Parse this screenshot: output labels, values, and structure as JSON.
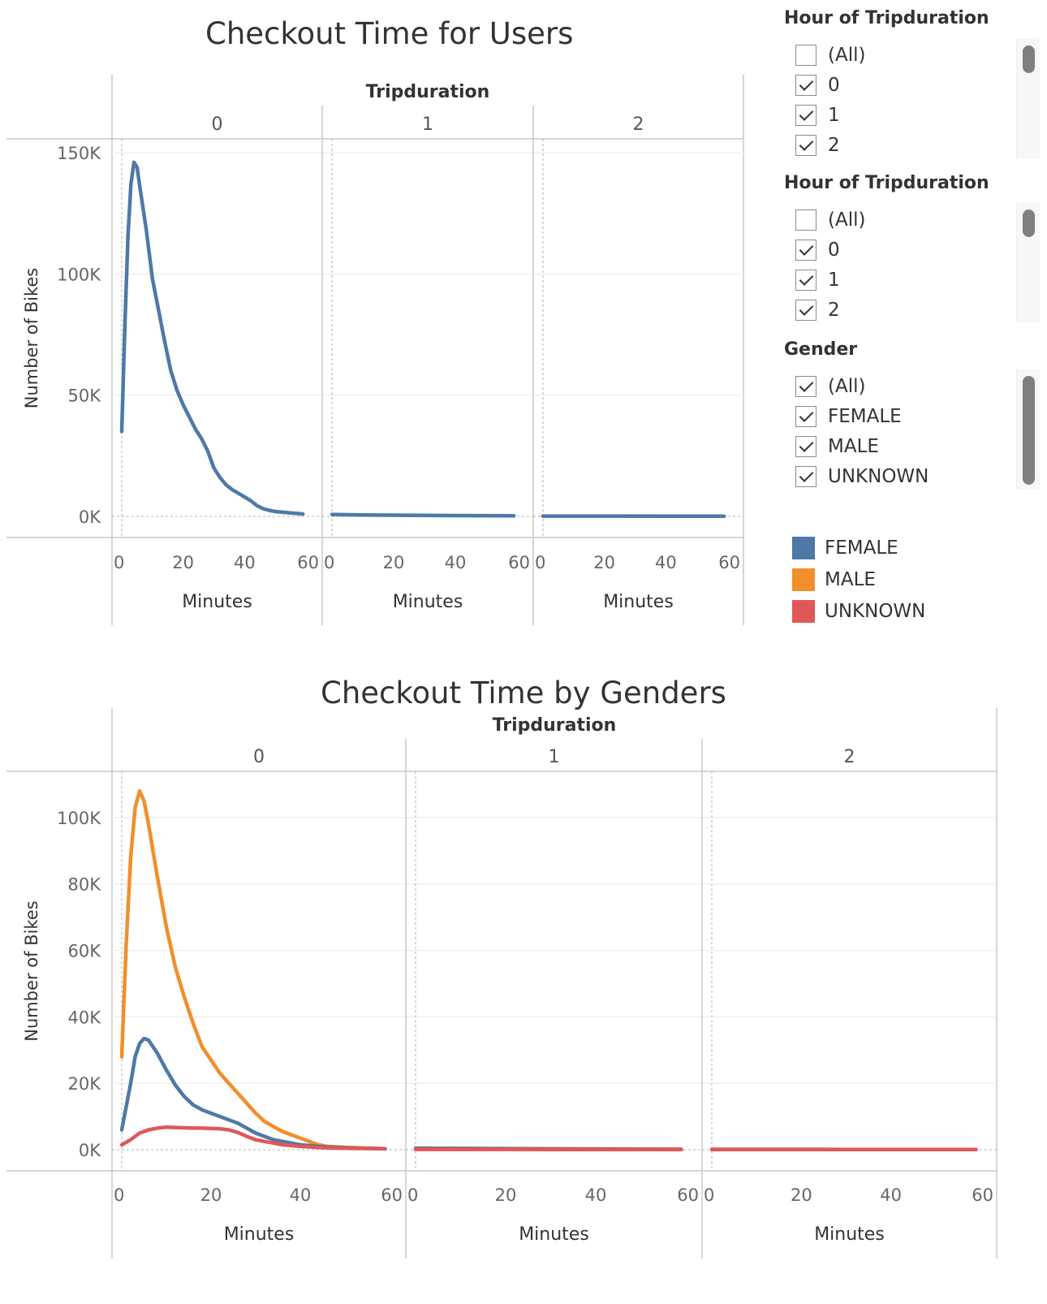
{
  "chart_data": [
    {
      "type": "line",
      "title": "Checkout Time for Users",
      "column_header": "Tripduration",
      "panels": [
        "0",
        "1",
        "2"
      ],
      "xlabel": "Minutes",
      "ylabel": "Number of Bikes",
      "xlim": [
        0,
        60
      ],
      "xticks": [
        0,
        20,
        40,
        60
      ],
      "ylim": [
        0,
        150000
      ],
      "yticks": [
        0,
        50000,
        100000,
        150000
      ],
      "ytick_labels": [
        "0K",
        "50K",
        "100K",
        "150K"
      ],
      "series": [
        {
          "color": "#4e79a7",
          "panel_values": [
            [
              [
                0,
                35000
              ],
              [
                1,
                78000
              ],
              [
                2,
                115000
              ],
              [
                3,
                137000
              ],
              [
                4,
                146000
              ],
              [
                5,
                144000
              ],
              [
                6,
                135000
              ],
              [
                8,
                118000
              ],
              [
                10,
                98000
              ],
              [
                12,
                85000
              ],
              [
                14,
                72000
              ],
              [
                16,
                60000
              ],
              [
                18,
                52000
              ],
              [
                20,
                46000
              ],
              [
                22,
                41000
              ],
              [
                24,
                36000
              ],
              [
                26,
                32000
              ],
              [
                28,
                27000
              ],
              [
                30,
                20000
              ],
              [
                32,
                16000
              ],
              [
                34,
                13000
              ],
              [
                36,
                11000
              ],
              [
                38,
                9500
              ],
              [
                40,
                8000
              ],
              [
                42,
                6500
              ],
              [
                44,
                4500
              ],
              [
                46,
                3200
              ],
              [
                48,
                2500
              ],
              [
                50,
                2000
              ],
              [
                55,
                1400
              ],
              [
                59,
                1000
              ]
            ],
            [
              [
                0,
                800
              ],
              [
                10,
                600
              ],
              [
                20,
                500
              ],
              [
                30,
                400
              ],
              [
                40,
                350
              ],
              [
                50,
                300
              ],
              [
                59,
                250
              ]
            ],
            [
              [
                0,
                150
              ],
              [
                20,
                120
              ],
              [
                40,
                100
              ],
              [
                59,
                80
              ]
            ]
          ]
        }
      ]
    },
    {
      "type": "line",
      "title": "Checkout Time by Genders",
      "column_header": "Tripduration",
      "panels": [
        "0",
        "1",
        "2"
      ],
      "xlabel": "Minutes",
      "ylabel": "Number of Bikes",
      "xlim": [
        0,
        60
      ],
      "xticks": [
        0,
        20,
        40,
        60
      ],
      "ylim": [
        0,
        110000
      ],
      "yticks": [
        0,
        20000,
        40000,
        60000,
        80000,
        100000
      ],
      "ytick_labels": [
        "0K",
        "20K",
        "40K",
        "60K",
        "80K",
        "100K"
      ],
      "series": [
        {
          "name": "MALE",
          "color": "#f28e2b",
          "panel_values": [
            [
              [
                0,
                28000
              ],
              [
                1,
                62000
              ],
              [
                2,
                88000
              ],
              [
                3,
                103000
              ],
              [
                4,
                108000
              ],
              [
                5,
                105000
              ],
              [
                6,
                98000
              ],
              [
                8,
                82000
              ],
              [
                10,
                67000
              ],
              [
                12,
                55000
              ],
              [
                14,
                46000
              ],
              [
                16,
                38000
              ],
              [
                18,
                31000
              ],
              [
                20,
                27000
              ],
              [
                22,
                23000
              ],
              [
                24,
                20000
              ],
              [
                26,
                17000
              ],
              [
                28,
                14000
              ],
              [
                30,
                11000
              ],
              [
                32,
                8500
              ],
              [
                34,
                7000
              ],
              [
                36,
                5500
              ],
              [
                38,
                4500
              ],
              [
                40,
                3500
              ],
              [
                42,
                2500
              ],
              [
                44,
                1500
              ],
              [
                46,
                1000
              ],
              [
                50,
                700
              ],
              [
                55,
                500
              ],
              [
                59,
                300
              ]
            ],
            [
              [
                0,
                500
              ],
              [
                20,
                350
              ],
              [
                40,
                250
              ],
              [
                59,
                150
              ]
            ],
            [
              [
                0,
                100
              ],
              [
                30,
                80
              ],
              [
                59,
                60
              ]
            ]
          ]
        },
        {
          "name": "FEMALE",
          "color": "#4e79a7",
          "panel_values": [
            [
              [
                0,
                6000
              ],
              [
                2,
                20000
              ],
              [
                3,
                28000
              ],
              [
                4,
                32000
              ],
              [
                5,
                33500
              ],
              [
                6,
                33000
              ],
              [
                8,
                29000
              ],
              [
                10,
                24000
              ],
              [
                12,
                19500
              ],
              [
                14,
                16000
              ],
              [
                16,
                13500
              ],
              [
                18,
                12000
              ],
              [
                20,
                11000
              ],
              [
                22,
                10000
              ],
              [
                24,
                9000
              ],
              [
                26,
                8000
              ],
              [
                28,
                6500
              ],
              [
                30,
                5000
              ],
              [
                32,
                4000
              ],
              [
                34,
                3000
              ],
              [
                36,
                2500
              ],
              [
                38,
                2000
              ],
              [
                40,
                1500
              ],
              [
                44,
                1000
              ],
              [
                48,
                700
              ],
              [
                52,
                500
              ],
              [
                59,
                300
              ]
            ],
            [
              [
                0,
                400
              ],
              [
                20,
                300
              ],
              [
                40,
                200
              ],
              [
                59,
                120
              ]
            ],
            [
              [
                0,
                100
              ],
              [
                30,
                80
              ],
              [
                59,
                60
              ]
            ]
          ]
        },
        {
          "name": "UNKNOWN",
          "color": "#e15759",
          "panel_values": [
            [
              [
                0,
                1500
              ],
              [
                2,
                3000
              ],
              [
                4,
                5000
              ],
              [
                6,
                6000
              ],
              [
                8,
                6500
              ],
              [
                10,
                6800
              ],
              [
                12,
                6700
              ],
              [
                14,
                6600
              ],
              [
                16,
                6500
              ],
              [
                18,
                6500
              ],
              [
                20,
                6400
              ],
              [
                22,
                6300
              ],
              [
                24,
                6000
              ],
              [
                26,
                5200
              ],
              [
                28,
                4000
              ],
              [
                30,
                3000
              ],
              [
                32,
                2500
              ],
              [
                34,
                2000
              ],
              [
                36,
                1500
              ],
              [
                40,
                1000
              ],
              [
                44,
                700
              ],
              [
                48,
                500
              ],
              [
                52,
                400
              ],
              [
                59,
                300
              ]
            ],
            [
              [
                0,
                100
              ],
              [
                30,
                80
              ],
              [
                59,
                60
              ]
            ],
            [
              [
                0,
                50
              ],
              [
                59,
                40
              ]
            ]
          ]
        }
      ]
    }
  ],
  "filters": [
    {
      "title": "Hour of Tripduration",
      "items": [
        {
          "label": "(All)",
          "checked": false
        },
        {
          "label": "0",
          "checked": true
        },
        {
          "label": "1",
          "checked": true
        },
        {
          "label": "2",
          "checked": true
        }
      ]
    },
    {
      "title": "Hour of Tripduration",
      "items": [
        {
          "label": "(All)",
          "checked": false
        },
        {
          "label": "0",
          "checked": true
        },
        {
          "label": "1",
          "checked": true
        },
        {
          "label": "2",
          "checked": true
        }
      ]
    },
    {
      "title": "Gender",
      "items": [
        {
          "label": "(All)",
          "checked": true
        },
        {
          "label": "FEMALE",
          "checked": true
        },
        {
          "label": "MALE",
          "checked": true
        },
        {
          "label": "UNKNOWN",
          "checked": true
        }
      ]
    }
  ],
  "legend": [
    {
      "label": "FEMALE",
      "color": "#4e79a7"
    },
    {
      "label": "MALE",
      "color": "#f28e2b"
    },
    {
      "label": "UNKNOWN",
      "color": "#e15759"
    }
  ]
}
